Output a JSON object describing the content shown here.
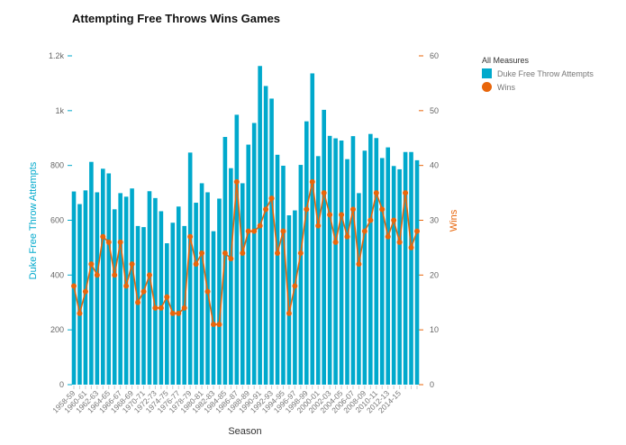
{
  "chart_data": {
    "type": "bar+line",
    "title": "Attempting Free Throws Wins Games",
    "xlabel": "Season",
    "ylabel_left": "Duke Free Throw Attempts",
    "ylabel_right": "Wins",
    "ylim_left": [
      0,
      1200
    ],
    "ylim_right": [
      0,
      60
    ],
    "yticks_left": [
      "0",
      "200",
      "400",
      "600",
      "800",
      "1k",
      "1.2k"
    ],
    "yticks_right": [
      "0",
      "10",
      "20",
      "30",
      "40",
      "50",
      "60"
    ],
    "grid": false,
    "legend_position": "right",
    "legend_title": "All Measures",
    "categories": [
      "1958-59",
      "",
      "1960-61",
      "",
      "1962-63",
      "",
      "1964-65",
      "",
      "1966-67",
      "",
      "1968-69",
      "",
      "1970-71",
      "",
      "1972-73",
      "",
      "1974-75",
      "",
      "1976-77",
      "",
      "1978-79",
      "",
      "1980-81",
      "",
      "1982-83",
      "",
      "1984-85",
      "",
      "1986-87",
      "",
      "1988-89",
      "",
      "1990-91",
      "",
      "1992-93",
      "",
      "1994-95",
      "",
      "1996-97",
      "",
      "1998-99",
      "",
      "2000-01",
      "",
      "2002-03",
      "",
      "2004-05",
      "",
      "2006-07",
      "",
      "2008-09",
      "",
      "2010-11",
      "",
      "2012-13",
      "",
      "2014-15",
      "",
      "",
      ""
    ],
    "series": [
      {
        "name": "Duke Free Throw Attempts",
        "type": "bar",
        "color": "#00a9cc",
        "values": [
          705,
          659,
          709,
          813,
          702,
          788,
          771,
          640,
          699,
          686,
          716,
          579,
          575,
          706,
          681,
          633,
          516,
          591,
          650,
          579,
          847,
          664,
          735,
          702,
          560,
          679,
          904,
          790,
          985,
          735,
          876,
          955,
          1163,
          1090,
          1044,
          839,
          799,
          618,
          636,
          802,
          961,
          1136,
          834,
          1003,
          908,
          899,
          891,
          823,
          907,
          699,
          854,
          915,
          900,
          827,
          866,
          798,
          786,
          849,
          849,
          819
        ]
      },
      {
        "name": "Wins",
        "type": "line",
        "color": "#e8650a",
        "values": [
          18,
          13,
          17,
          22,
          20,
          27,
          26,
          20,
          26,
          18,
          22,
          15,
          17,
          20,
          14,
          14,
          16,
          13,
          13,
          14,
          27,
          22,
          24,
          17,
          11,
          11,
          24,
          23,
          37,
          24,
          28,
          28,
          29,
          32,
          34,
          24,
          28,
          13,
          18,
          24,
          32,
          37,
          29,
          35,
          31,
          26,
          31,
          27,
          32,
          22,
          28,
          30,
          35,
          32,
          27,
          30,
          26,
          35,
          25,
          28
        ]
      }
    ]
  }
}
